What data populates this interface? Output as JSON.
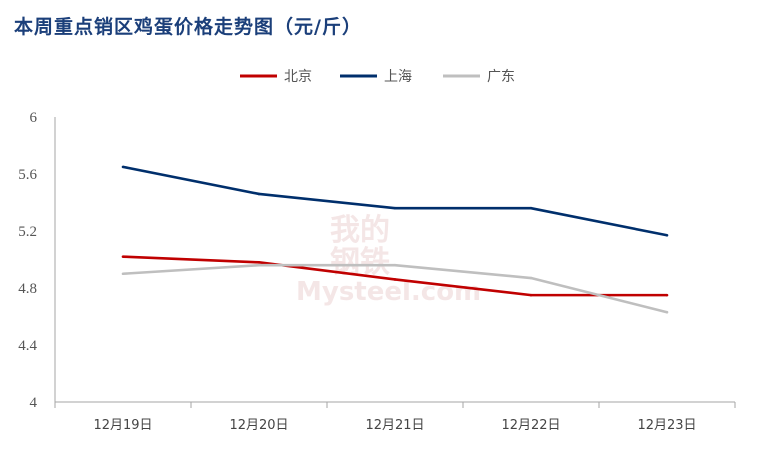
{
  "chart_data": {
    "type": "line",
    "title": "本周重点销区鸡蛋价格走势图（元/斤）",
    "categories": [
      "12月19日",
      "12月20日",
      "12月21日",
      "12月22日",
      "12月23日"
    ],
    "series": [
      {
        "name": "北京",
        "color": "#c00000",
        "values": [
          5.02,
          4.98,
          4.86,
          4.75,
          4.75
        ]
      },
      {
        "name": "上海",
        "color": "#002f6c",
        "values": [
          5.65,
          5.46,
          5.36,
          5.36,
          5.17
        ]
      },
      {
        "name": "广东",
        "color": "#bfbfbf",
        "values": [
          4.9,
          4.96,
          4.96,
          4.87,
          4.63
        ]
      }
    ],
    "yticks": [
      "4",
      "4.4",
      "4.8",
      "5.2",
      "5.6",
      "6"
    ],
    "ylim": [
      4,
      6
    ],
    "legend": "top-center",
    "grid": false
  },
  "watermark": {
    "line1": "我的",
    "line2": "钢铁",
    "line3": "Mysteel.com"
  }
}
